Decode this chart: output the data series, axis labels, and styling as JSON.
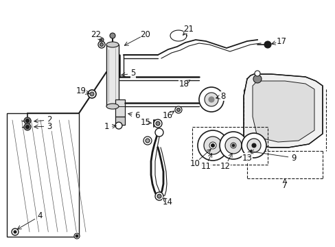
{
  "bg_color": "#ffffff",
  "line_color": "#1a1a1a",
  "label_color": "#111111",
  "font_size": 8.5,
  "figsize": [
    4.89,
    3.6
  ],
  "dpi": 100,
  "xlim": [
    0,
    489
  ],
  "ylim": [
    0,
    360
  ]
}
